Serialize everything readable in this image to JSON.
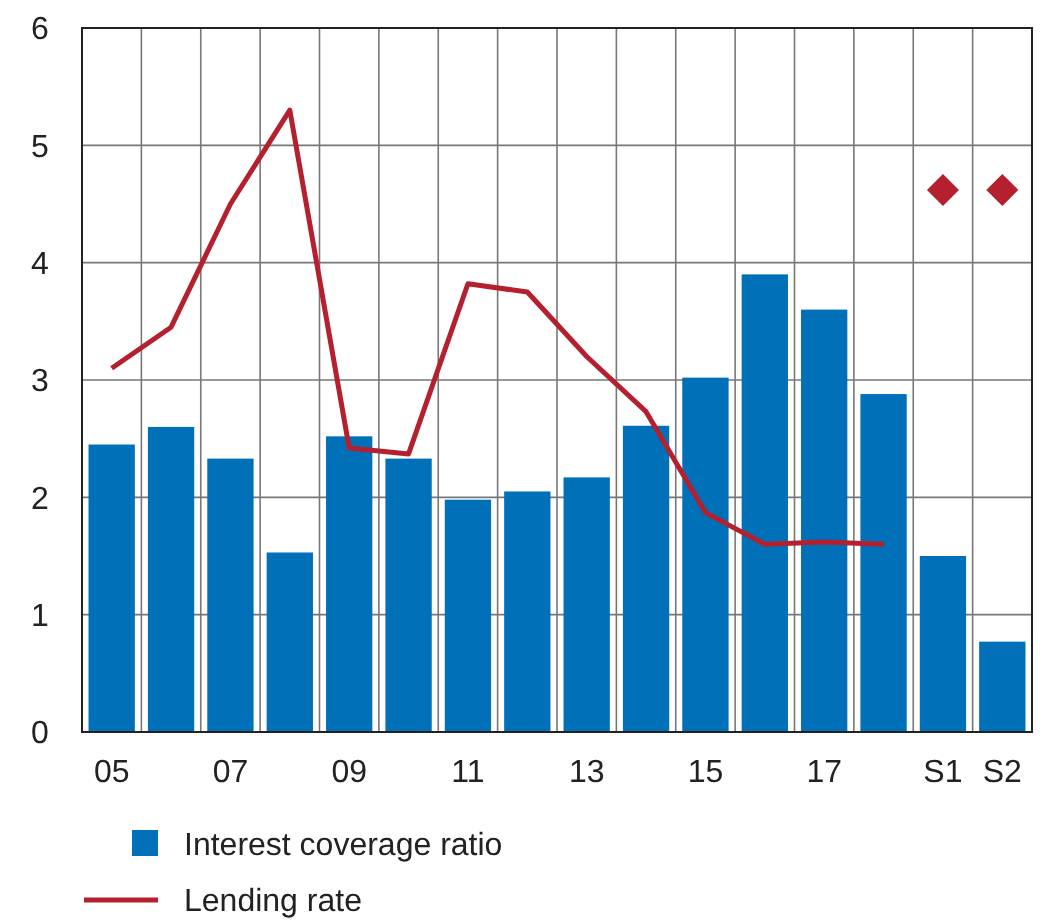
{
  "chart_data": {
    "type": "bar",
    "categories": [
      "05",
      null,
      "07",
      null,
      "09",
      null,
      "11",
      null,
      "13",
      null,
      "15",
      null,
      "17",
      null,
      "S1",
      "S2"
    ],
    "series": [
      {
        "name": "Interest coverage ratio",
        "color": "#0070b8",
        "values": [
          2.45,
          2.6,
          2.33,
          1.53,
          2.52,
          2.33,
          1.98,
          2.05,
          2.17,
          2.61,
          3.02,
          3.9,
          3.6,
          2.88,
          1.5,
          0.77
        ]
      },
      {
        "name": "Lending rate",
        "type": "line",
        "color": "#b5202e",
        "values": [
          3.1,
          3.45,
          4.5,
          5.3,
          2.42,
          2.37,
          3.82,
          3.75,
          3.2,
          2.73,
          1.87,
          1.6,
          1.62,
          1.6,
          null,
          null
        ]
      },
      {
        "type": "scatter",
        "color": "#b5202e",
        "marker": "diamond",
        "values": [
          null,
          null,
          null,
          null,
          null,
          null,
          null,
          null,
          null,
          null,
          null,
          null,
          null,
          null,
          4.62,
          4.62
        ]
      }
    ],
    "ylim": [
      0,
      6
    ],
    "yticks": [
      0,
      1,
      2,
      3,
      4,
      5,
      6
    ],
    "grid": true,
    "legend": "bottom"
  }
}
